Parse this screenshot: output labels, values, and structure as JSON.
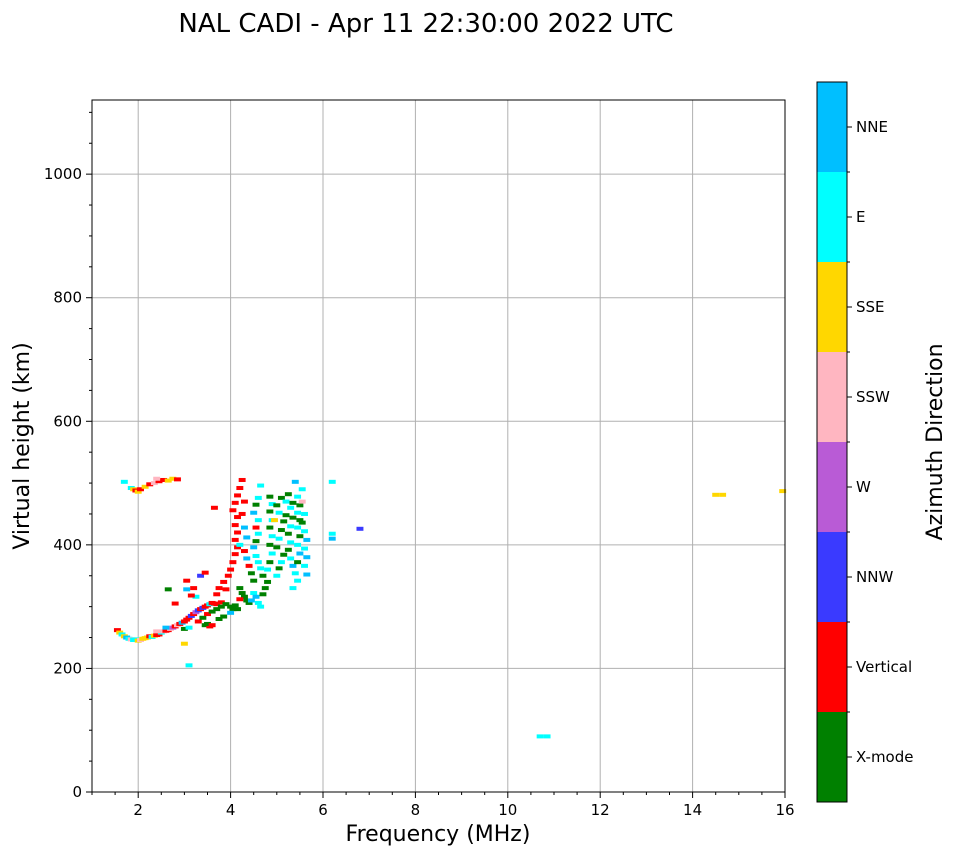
{
  "chart_data": {
    "type": "scatter",
    "title": "NAL CADI - Apr 11 22:30:00 2022 UTC",
    "xlabel": "Frequency (MHz)",
    "ylabel": "Virtual height (km)",
    "xlim": [
      1,
      16
    ],
    "ylim": [
      0,
      1120
    ],
    "xticks": [
      2,
      4,
      6,
      8,
      10,
      12,
      14,
      16
    ],
    "yticks": [
      0,
      200,
      400,
      600,
      800,
      1000
    ],
    "grid": true,
    "colorbar": {
      "label": "Azimuth Direction",
      "categories": [
        {
          "name": "X-mode",
          "color": "#008000"
        },
        {
          "name": "Vertical",
          "color": "#ff0000"
        },
        {
          "name": "NNW",
          "color": "#3a3aff"
        },
        {
          "name": "W",
          "color": "#b95bd6"
        },
        {
          "name": "SSW",
          "color": "#ffb6c1"
        },
        {
          "name": "SSE",
          "color": "#ffd700"
        },
        {
          "name": "E",
          "color": "#00ffff"
        },
        {
          "name": "NNE",
          "color": "#00bfff"
        }
      ]
    },
    "points": [
      [
        1.55,
        262,
        "Vertical"
      ],
      [
        1.6,
        258,
        "SSE"
      ],
      [
        1.65,
        255,
        "E"
      ],
      [
        1.7,
        252,
        "SSE"
      ],
      [
        1.75,
        250,
        "NNE"
      ],
      [
        1.8,
        248,
        "E"
      ],
      [
        1.85,
        247,
        "SSW"
      ],
      [
        1.9,
        246,
        "E"
      ],
      [
        1.95,
        247,
        "E"
      ],
      [
        2.0,
        245,
        "SSE"
      ],
      [
        2.05,
        246,
        "SSW"
      ],
      [
        2.1,
        248,
        "SSE"
      ],
      [
        2.15,
        249,
        "SSE"
      ],
      [
        2.2,
        250,
        "SSE"
      ],
      [
        2.25,
        252,
        "Vertical"
      ],
      [
        2.3,
        251,
        "E"
      ],
      [
        2.35,
        253,
        "SSE"
      ],
      [
        2.4,
        254,
        "Vertical"
      ],
      [
        2.45,
        255,
        "Vertical"
      ],
      [
        2.5,
        258,
        "E"
      ],
      [
        2.55,
        260,
        "SSW"
      ],
      [
        2.6,
        261,
        "Vertical"
      ],
      [
        2.65,
        262,
        "Vertical"
      ],
      [
        2.7,
        264,
        "SSW"
      ],
      [
        2.75,
        266,
        "W"
      ],
      [
        2.8,
        268,
        "Vertical"
      ],
      [
        2.85,
        270,
        "SSW"
      ],
      [
        2.9,
        272,
        "Vertical"
      ],
      [
        2.95,
        274,
        "NNE"
      ],
      [
        3.0,
        276,
        "Vertical"
      ],
      [
        3.05,
        279,
        "Vertical"
      ],
      [
        3.1,
        282,
        "Vertical"
      ],
      [
        3.15,
        285,
        "NNW"
      ],
      [
        3.2,
        288,
        "Vertical"
      ],
      [
        3.25,
        291,
        "W"
      ],
      [
        3.3,
        294,
        "NNW"
      ],
      [
        3.35,
        296,
        "Vertical"
      ],
      [
        3.4,
        298,
        "NNW"
      ],
      [
        3.45,
        300,
        "Vertical"
      ],
      [
        3.5,
        302,
        "Vertical"
      ],
      [
        3.55,
        304,
        "E"
      ],
      [
        3.6,
        306,
        "Vertical"
      ],
      [
        3.65,
        305,
        "Vertical"
      ],
      [
        3.7,
        304,
        "Vertical"
      ],
      [
        3.8,
        307,
        "Vertical"
      ],
      [
        3.3,
        276,
        "Vertical"
      ],
      [
        3.4,
        282,
        "X-mode"
      ],
      [
        3.5,
        288,
        "Vertical"
      ],
      [
        3.6,
        292,
        "X-mode"
      ],
      [
        3.7,
        296,
        "X-mode"
      ],
      [
        3.8,
        300,
        "X-mode"
      ],
      [
        3.9,
        304,
        "X-mode"
      ],
      [
        4.0,
        300,
        "X-mode"
      ],
      [
        4.05,
        296,
        "X-mode"
      ],
      [
        3.85,
        284,
        "X-mode"
      ],
      [
        3.75,
        280,
        "X-mode"
      ],
      [
        3.45,
        270,
        "X-mode"
      ],
      [
        3.55,
        268,
        "Vertical"
      ],
      [
        3.0,
        264,
        "X-mode"
      ],
      [
        3.1,
        266,
        "E"
      ],
      [
        3.0,
        240,
        "SSE"
      ],
      [
        2.4,
        260,
        "SSW"
      ],
      [
        2.6,
        266,
        "NNE"
      ],
      [
        1.7,
        502,
        "E"
      ],
      [
        1.85,
        492,
        "E"
      ],
      [
        1.9,
        490,
        "SSE"
      ],
      [
        1.95,
        488,
        "Vertical"
      ],
      [
        2.0,
        486,
        "SSE"
      ],
      [
        2.05,
        490,
        "Vertical"
      ],
      [
        2.15,
        494,
        "SSE"
      ],
      [
        2.25,
        498,
        "Vertical"
      ],
      [
        2.35,
        500,
        "SSW"
      ],
      [
        2.45,
        503,
        "Vertical"
      ],
      [
        2.55,
        505,
        "Vertical"
      ],
      [
        2.65,
        504,
        "SSE"
      ],
      [
        2.75,
        507,
        "SSE"
      ],
      [
        2.85,
        506,
        "Vertical"
      ],
      [
        2.4,
        507,
        "SSW"
      ],
      [
        3.1,
        205,
        "E"
      ],
      [
        2.65,
        328,
        "X-mode"
      ],
      [
        2.8,
        305,
        "Vertical"
      ],
      [
        3.05,
        328,
        "NNE"
      ],
      [
        3.05,
        342,
        "Vertical"
      ],
      [
        3.2,
        330,
        "Vertical"
      ],
      [
        3.35,
        350,
        "NNW"
      ],
      [
        3.45,
        355,
        "Vertical"
      ],
      [
        3.25,
        316,
        "E"
      ],
      [
        3.15,
        318,
        "Vertical"
      ],
      [
        3.5,
        272,
        "X-mode"
      ],
      [
        3.6,
        270,
        "Vertical"
      ],
      [
        3.65,
        460,
        "Vertical"
      ],
      [
        3.7,
        320,
        "Vertical"
      ],
      [
        3.75,
        330,
        "Vertical"
      ],
      [
        3.85,
        340,
        "Vertical"
      ],
      [
        3.9,
        328,
        "Vertical"
      ],
      [
        3.95,
        350,
        "Vertical"
      ],
      [
        4.0,
        360,
        "Vertical"
      ],
      [
        4.05,
        372,
        "Vertical"
      ],
      [
        4.1,
        385,
        "Vertical"
      ],
      [
        4.15,
        396,
        "Vertical"
      ],
      [
        4.1,
        408,
        "Vertical"
      ],
      [
        4.15,
        420,
        "Vertical"
      ],
      [
        4.1,
        432,
        "Vertical"
      ],
      [
        4.15,
        445,
        "Vertical"
      ],
      [
        4.05,
        456,
        "Vertical"
      ],
      [
        4.1,
        468,
        "Vertical"
      ],
      [
        4.15,
        480,
        "Vertical"
      ],
      [
        4.2,
        492,
        "Vertical"
      ],
      [
        4.25,
        505,
        "Vertical"
      ],
      [
        4.3,
        470,
        "Vertical"
      ],
      [
        4.25,
        450,
        "Vertical"
      ],
      [
        4.3,
        428,
        "NNE"
      ],
      [
        4.35,
        412,
        "NNE"
      ],
      [
        4.2,
        400,
        "E"
      ],
      [
        4.3,
        390,
        "Vertical"
      ],
      [
        4.35,
        378,
        "NNE"
      ],
      [
        4.4,
        366,
        "Vertical"
      ],
      [
        4.45,
        354,
        "X-mode"
      ],
      [
        4.5,
        342,
        "X-mode"
      ],
      [
        4.2,
        330,
        "X-mode"
      ],
      [
        4.25,
        322,
        "X-mode"
      ],
      [
        4.3,
        316,
        "X-mode"
      ],
      [
        4.35,
        310,
        "X-mode"
      ],
      [
        4.4,
        306,
        "X-mode"
      ],
      [
        4.2,
        312,
        "Vertical"
      ],
      [
        4.1,
        302,
        "X-mode"
      ],
      [
        4.15,
        296,
        "X-mode"
      ],
      [
        4.0,
        290,
        "NNE"
      ],
      [
        4.5,
        322,
        "E"
      ],
      [
        4.55,
        316,
        "NNE"
      ],
      [
        4.6,
        306,
        "E"
      ],
      [
        4.65,
        300,
        "E"
      ],
      [
        4.45,
        310,
        "NNE"
      ],
      [
        4.7,
        320,
        "X-mode"
      ],
      [
        4.75,
        330,
        "X-mode"
      ],
      [
        4.8,
        340,
        "X-mode"
      ],
      [
        4.7,
        350,
        "X-mode"
      ],
      [
        4.65,
        362,
        "E"
      ],
      [
        4.6,
        372,
        "E"
      ],
      [
        4.55,
        382,
        "E"
      ],
      [
        4.5,
        396,
        "NNE"
      ],
      [
        4.55,
        406,
        "X-mode"
      ],
      [
        4.6,
        418,
        "E"
      ],
      [
        4.55,
        428,
        "Vertical"
      ],
      [
        4.6,
        440,
        "E"
      ],
      [
        4.5,
        452,
        "NNE"
      ],
      [
        4.55,
        465,
        "X-mode"
      ],
      [
        4.6,
        476,
        "E"
      ],
      [
        4.65,
        496,
        "E"
      ],
      [
        4.8,
        360,
        "E"
      ],
      [
        4.85,
        372,
        "X-mode"
      ],
      [
        4.9,
        386,
        "E"
      ],
      [
        4.85,
        400,
        "X-mode"
      ],
      [
        4.9,
        414,
        "E"
      ],
      [
        4.85,
        428,
        "X-mode"
      ],
      [
        4.9,
        440,
        "E"
      ],
      [
        4.85,
        454,
        "X-mode"
      ],
      [
        4.9,
        466,
        "E"
      ],
      [
        4.85,
        478,
        "X-mode"
      ],
      [
        5.0,
        350,
        "E"
      ],
      [
        5.05,
        362,
        "X-mode"
      ],
      [
        5.1,
        372,
        "E"
      ],
      [
        5.15,
        384,
        "X-mode"
      ],
      [
        5.0,
        396,
        "X-mode"
      ],
      [
        5.05,
        410,
        "E"
      ],
      [
        5.1,
        424,
        "X-mode"
      ],
      [
        5.15,
        438,
        "X-mode"
      ],
      [
        5.05,
        452,
        "E"
      ],
      [
        5.0,
        464,
        "X-mode"
      ],
      [
        5.1,
        476,
        "X-mode"
      ],
      [
        5.2,
        470,
        "E"
      ],
      [
        5.25,
        482,
        "X-mode"
      ],
      [
        5.3,
        460,
        "E"
      ],
      [
        5.35,
        444,
        "X-mode"
      ],
      [
        5.3,
        430,
        "E"
      ],
      [
        5.25,
        418,
        "X-mode"
      ],
      [
        5.3,
        404,
        "E"
      ],
      [
        5.25,
        392,
        "X-mode"
      ],
      [
        5.3,
        378,
        "E"
      ],
      [
        5.35,
        366,
        "NNE"
      ],
      [
        5.4,
        354,
        "E"
      ],
      [
        5.45,
        342,
        "E"
      ],
      [
        5.35,
        330,
        "E"
      ],
      [
        5.45,
        372,
        "X-mode"
      ],
      [
        5.5,
        386,
        "NNE"
      ],
      [
        5.45,
        400,
        "E"
      ],
      [
        5.5,
        414,
        "X-mode"
      ],
      [
        5.45,
        428,
        "E"
      ],
      [
        5.5,
        440,
        "X-mode"
      ],
      [
        5.45,
        452,
        "E"
      ],
      [
        5.5,
        464,
        "X-mode"
      ],
      [
        5.45,
        478,
        "E"
      ],
      [
        5.4,
        502,
        "NNE"
      ],
      [
        5.55,
        436,
        "X-mode"
      ],
      [
        5.6,
        422,
        "E"
      ],
      [
        5.65,
        408,
        "NNE"
      ],
      [
        5.6,
        394,
        "E"
      ],
      [
        5.65,
        380,
        "NNE"
      ],
      [
        5.6,
        366,
        "E"
      ],
      [
        5.65,
        352,
        "NNE"
      ],
      [
        5.55,
        470,
        "SSW"
      ],
      [
        5.55,
        490,
        "E"
      ],
      [
        5.6,
        450,
        "E"
      ],
      [
        4.95,
        440,
        "SSE"
      ],
      [
        5.2,
        448,
        "X-mode"
      ],
      [
        5.35,
        468,
        "X-mode"
      ],
      [
        6.2,
        502,
        "E"
      ],
      [
        6.2,
        410,
        "NNE"
      ],
      [
        6.2,
        418,
        "E"
      ],
      [
        6.8,
        426,
        "NNW"
      ],
      [
        10.7,
        90,
        "E"
      ],
      [
        10.85,
        90,
        "E"
      ],
      [
        14.5,
        481,
        "SSE"
      ],
      [
        14.65,
        481,
        "SSE"
      ],
      [
        15.95,
        487,
        "SSE"
      ]
    ]
  }
}
